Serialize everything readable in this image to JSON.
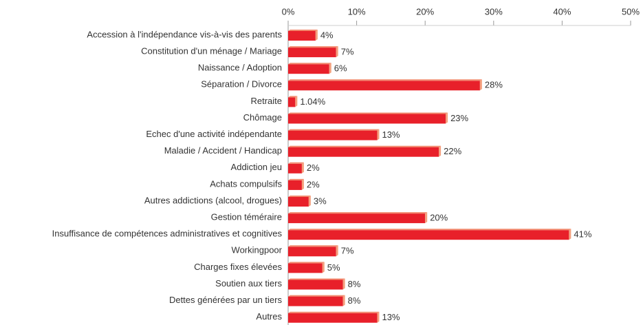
{
  "chart_data": {
    "type": "bar",
    "orientation": "horizontal",
    "color": "#e8202a",
    "categories": [
      "Accession à l'indépendance vis-à-vis des parents",
      "Constitution d'un ménage / Mariage",
      "Naissance / Adoption",
      "Séparation / Divorce",
      "Retraite",
      "Chômage",
      "Echec d'une activité indépendante",
      "Maladie / Accident / Handicap",
      "Addiction jeu",
      "Achats compulsifs",
      "Autres addictions (alcool, drogues)",
      "Gestion téméraire",
      "Insuffisance de compétences administratives et cognitives",
      "Workingpoor",
      "Charges fixes élevées",
      "Soutien aux tiers",
      "Dettes générées par un tiers",
      "Autres"
    ],
    "values": [
      4,
      7,
      6,
      28,
      1.04,
      23,
      13,
      22,
      2,
      2,
      3,
      20,
      41,
      7,
      5,
      8,
      8,
      13
    ],
    "value_labels": [
      "4%",
      "7%",
      "6%",
      "28%",
      "1.04%",
      "23%",
      "13%",
      "22%",
      "2%",
      "2%",
      "3%",
      "20%",
      "41%",
      "7%",
      "5%",
      "8%",
      "8%",
      "13%"
    ],
    "xlim": [
      0,
      50
    ],
    "xticks": [
      {
        "value": 0,
        "label": "0%"
      },
      {
        "value": 10,
        "label": "10%"
      },
      {
        "value": 20,
        "label": "20%"
      },
      {
        "value": 30,
        "label": "30%"
      },
      {
        "value": 40,
        "label": "40%"
      },
      {
        "value": 50,
        "label": "50%"
      }
    ]
  }
}
